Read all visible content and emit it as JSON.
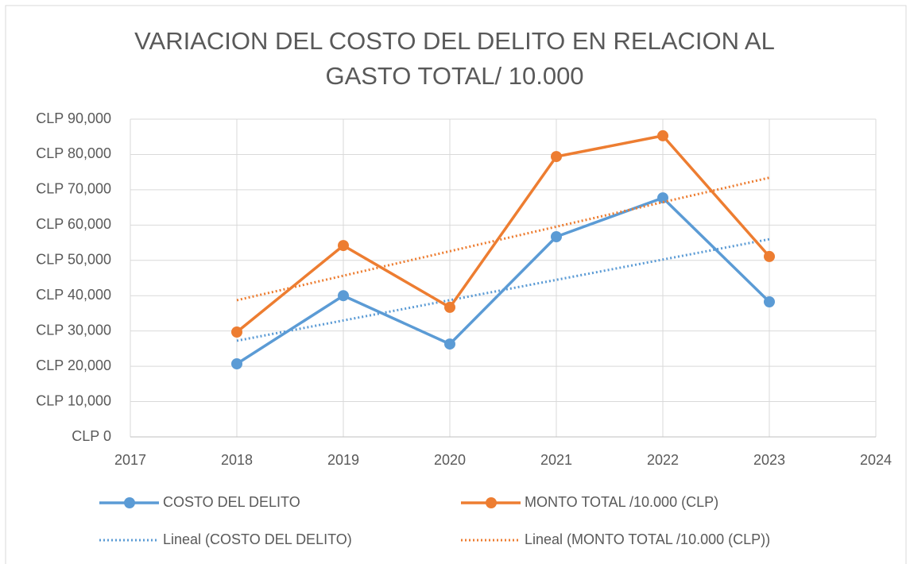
{
  "chart_data": {
    "type": "line",
    "title": "VARIACION DEL COSTO DEL DELITO EN RELACION AL GASTO TOTAL/ 10.000",
    "x": [
      2018,
      2019,
      2020,
      2021,
      2022,
      2023
    ],
    "series": [
      {
        "name": "COSTO DEL DELITO",
        "color": "#5b9bd5",
        "values": [
          20700,
          40000,
          26300,
          56700,
          67700,
          38250
        ],
        "trendline": "Lineal (COSTO DEL DELITO)"
      },
      {
        "name": "MONTO TOTAL /10.000 (CLP)",
        "color": "#ed7d31",
        "values": [
          29700,
          54200,
          36700,
          79400,
          85300,
          51100
        ],
        "trendline": "Lineal (MONTO TOTAL /10.000 (CLP))"
      }
    ],
    "xlim": [
      2017,
      2024
    ],
    "xticks": [
      2017,
      2018,
      2019,
      2020,
      2021,
      2022,
      2023,
      2024
    ],
    "ylim": [
      0,
      90000
    ],
    "yticks": [
      {
        "value": 0,
        "label": "CLP 0"
      },
      {
        "value": 10000,
        "label": "CLP 10,000"
      },
      {
        "value": 20000,
        "label": "CLP 20,000"
      },
      {
        "value": 30000,
        "label": "CLP 30,000"
      },
      {
        "value": 40000,
        "label": "CLP 40,000"
      },
      {
        "value": 50000,
        "label": "CLP 50,000"
      },
      {
        "value": 60000,
        "label": "CLP 60,000"
      },
      {
        "value": 70000,
        "label": "CLP 70,000"
      },
      {
        "value": 80000,
        "label": "CLP 80,000"
      },
      {
        "value": 90000,
        "label": "CLP 90,000"
      }
    ],
    "grid": true,
    "legend": "bottom"
  }
}
